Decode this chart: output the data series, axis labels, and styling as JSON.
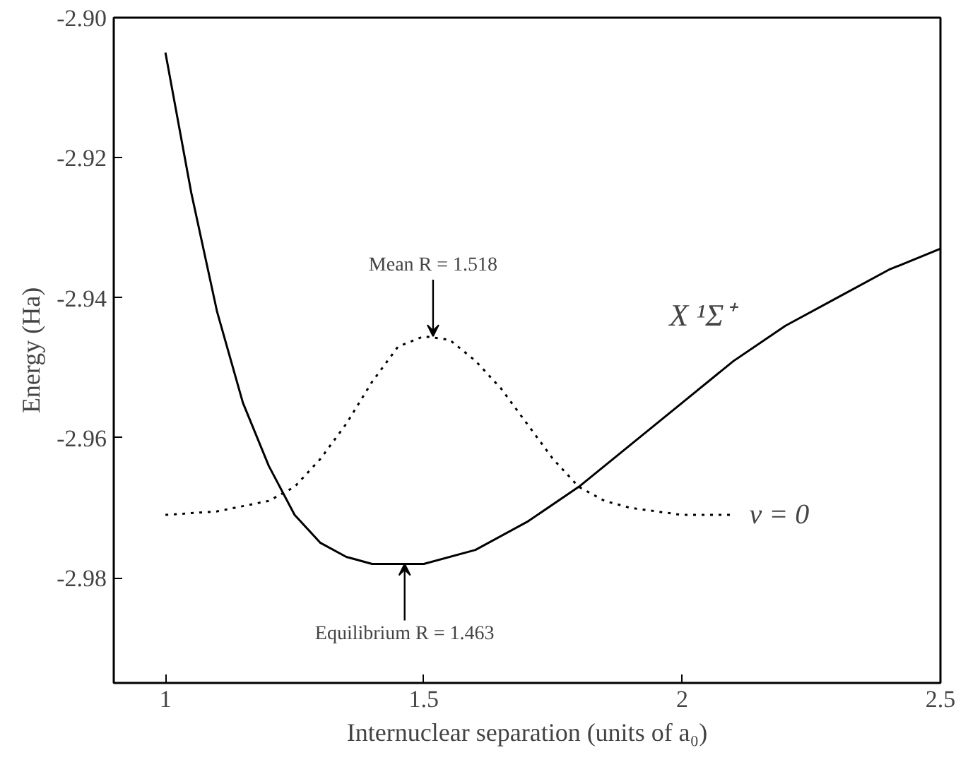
{
  "chart_data": {
    "type": "line",
    "xlabel": "Internuclear separation (units of a₀)",
    "ylabel": "Energy (Ha)",
    "xlim": [
      0.9,
      2.5
    ],
    "ylim": [
      -2.995,
      -2.9
    ],
    "xticks": [
      1,
      1.5,
      2,
      2.5
    ],
    "yticks": [
      {
        "value": -2.9,
        "label": "-2.90"
      },
      {
        "value": -2.92,
        "label": "-2.92"
      },
      {
        "value": -2.94,
        "label": "-2.94"
      },
      {
        "value": -2.96,
        "label": "-2.96"
      },
      {
        "value": -2.98,
        "label": "-2.98"
      }
    ],
    "grid": false,
    "marker": "none",
    "series": [
      {
        "name": "X ¹Σ⁺",
        "color": "#000000",
        "line_style": "solid",
        "x": [
          1.0,
          1.05,
          1.1,
          1.15,
          1.2,
          1.25,
          1.3,
          1.35,
          1.4,
          1.463,
          1.5,
          1.6,
          1.7,
          1.8,
          1.9,
          2.0,
          2.1,
          2.2,
          2.3,
          2.4,
          2.5
        ],
        "values": [
          -2.905,
          -2.925,
          -2.942,
          -2.955,
          -2.964,
          -2.971,
          -2.975,
          -2.977,
          -2.978,
          -2.978,
          -2.978,
          -2.976,
          -2.972,
          -2.967,
          -2.961,
          -2.955,
          -2.949,
          -2.944,
          -2.94,
          -2.936,
          -2.933
        ]
      },
      {
        "name": "v = 0",
        "color": "#000000",
        "line_style": "dotted",
        "x": [
          1.0,
          1.1,
          1.2,
          1.25,
          1.3,
          1.35,
          1.4,
          1.45,
          1.5,
          1.55,
          1.6,
          1.65,
          1.7,
          1.75,
          1.8,
          1.85,
          1.9,
          2.0,
          2.1
        ],
        "values": [
          -2.971,
          -2.9705,
          -2.969,
          -2.967,
          -2.963,
          -2.958,
          -2.952,
          -2.947,
          -2.9455,
          -2.946,
          -2.949,
          -2.953,
          -2.958,
          -2.963,
          -2.967,
          -2.969,
          -2.97,
          -2.971,
          -2.971
        ]
      }
    ],
    "annotations": [
      {
        "text": "Mean R = 1.518",
        "x": 1.518,
        "y": -2.9455
      },
      {
        "text": "Equilibrium R = 1.463",
        "x": 1.463,
        "y": -2.978
      }
    ]
  }
}
